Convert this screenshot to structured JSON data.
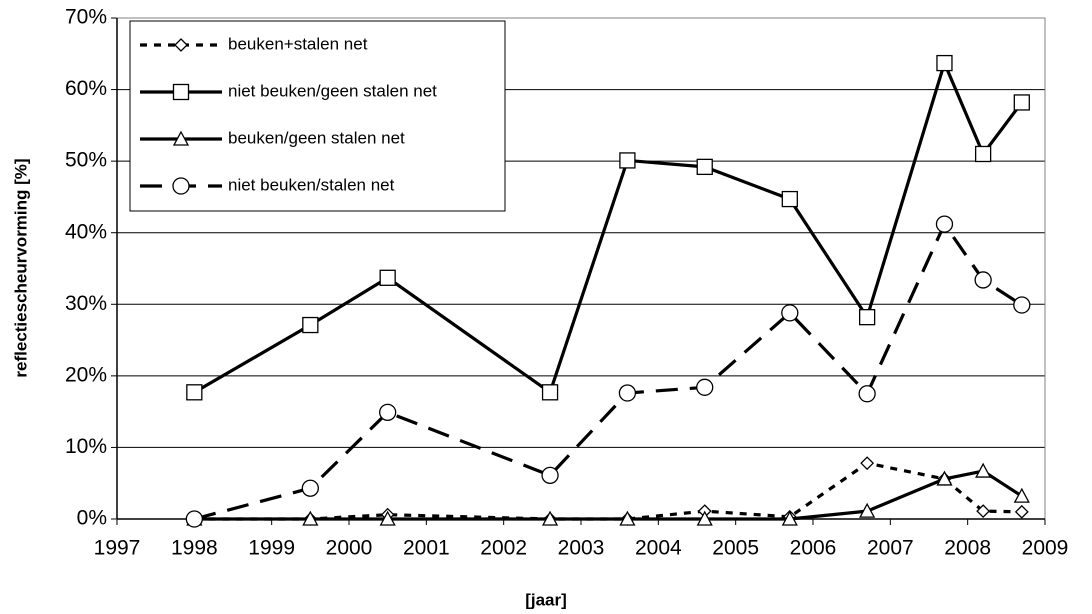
{
  "chart_data": {
    "type": "line",
    "x_label": "[jaar]",
    "y_label": "reflectiescheurvorming [%]",
    "xlim": [
      1997,
      2009
    ],
    "xticks": [
      1997,
      1998,
      1999,
      2000,
      2001,
      2002,
      2003,
      2004,
      2005,
      2006,
      2007,
      2008,
      2009
    ],
    "ylim": [
      0,
      70
    ],
    "yticks": [
      {
        "value": 0,
        "label": "0%"
      },
      {
        "value": 10,
        "label": "10%"
      },
      {
        "value": 20,
        "label": "20%"
      },
      {
        "value": 30,
        "label": "30%"
      },
      {
        "value": 40,
        "label": "40%"
      },
      {
        "value": 50,
        "label": "50%"
      },
      {
        "value": 60,
        "label": "60%"
      },
      {
        "value": 70,
        "label": "70%"
      }
    ],
    "grid": true,
    "legend": "upper left",
    "x": [
      1998,
      1999.5,
      2000.5,
      2002.6,
      2003.6,
      2004.6,
      2005.7,
      2006.7,
      2007.7,
      2008.2,
      2008.7
    ],
    "series": [
      {
        "name": "beuken+stalen net",
        "color": "#000000",
        "line_style": "dotted",
        "marker": "diamond",
        "values": [
          0,
          0,
          0.6,
          0,
          0,
          1.1,
          0.3,
          7.8,
          5.6,
          1.1,
          1.0
        ]
      },
      {
        "name": "niet beuken/geen stalen net",
        "color": "#000000",
        "line_style": "solid",
        "marker": "square",
        "values": [
          17.7,
          27.1,
          33.7,
          17.7,
          50.1,
          49.2,
          44.7,
          28.2,
          63.7,
          51.0,
          58.2
        ]
      },
      {
        "name": "beuken/geen stalen net",
        "color": "#000000",
        "line_style": "solid",
        "marker": "triangle",
        "values": [
          0,
          0,
          0,
          0,
          0,
          0,
          0,
          1.1,
          5.6,
          6.7,
          3.2
        ]
      },
      {
        "name": "niet beuken/stalen net",
        "color": "#000000",
        "line_style": "dashed",
        "marker": "circle",
        "values": [
          0,
          4.3,
          14.9,
          6.1,
          17.6,
          18.4,
          28.8,
          17.5,
          41.2,
          33.4,
          29.9
        ]
      }
    ]
  }
}
